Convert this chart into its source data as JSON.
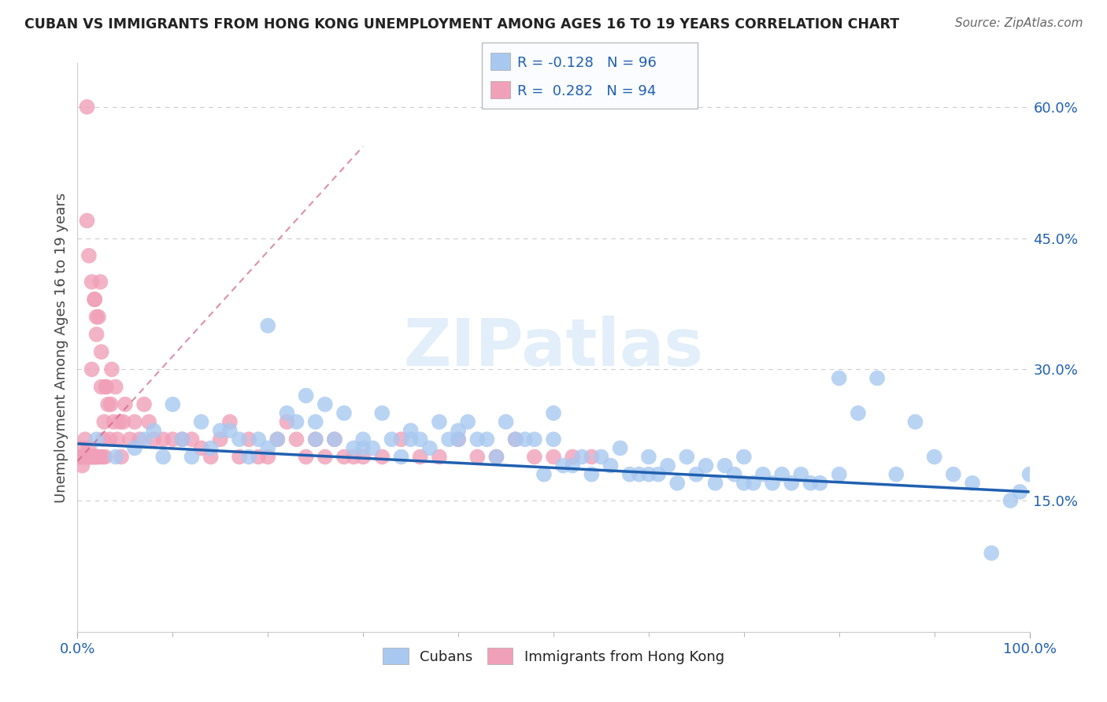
{
  "title": "CUBAN VS IMMIGRANTS FROM HONG KONG UNEMPLOYMENT AMONG AGES 16 TO 19 YEARS CORRELATION CHART",
  "source": "Source: ZipAtlas.com",
  "ylabel": "Unemployment Among Ages 16 to 19 years",
  "xlim": [
    0.0,
    1.0
  ],
  "ylim": [
    0.0,
    0.65
  ],
  "y_ticks": [
    0.15,
    0.3,
    0.45,
    0.6
  ],
  "y_tick_labels": [
    "15.0%",
    "30.0%",
    "45.0%",
    "60.0%"
  ],
  "blue_R": -0.128,
  "blue_N": 96,
  "pink_R": 0.282,
  "pink_N": 94,
  "blue_color": "#A8C8F0",
  "pink_color": "#F0A0B8",
  "blue_line_color": "#2060B0",
  "pink_line_color": "#D06080",
  "text_color": "#2060B0",
  "background_color": "#FFFFFF",
  "grid_color": "#CCCCCC",
  "watermark_color": "#D8E8F8",
  "blue_x": [
    0.02,
    0.04,
    0.06,
    0.07,
    0.08,
    0.09,
    0.1,
    0.11,
    0.12,
    0.13,
    0.14,
    0.16,
    0.17,
    0.18,
    0.19,
    0.2,
    0.21,
    0.22,
    0.23,
    0.24,
    0.25,
    0.26,
    0.27,
    0.28,
    0.29,
    0.3,
    0.31,
    0.32,
    0.33,
    0.34,
    0.35,
    0.36,
    0.37,
    0.38,
    0.39,
    0.4,
    0.41,
    0.42,
    0.43,
    0.44,
    0.45,
    0.46,
    0.47,
    0.48,
    0.49,
    0.5,
    0.51,
    0.52,
    0.53,
    0.54,
    0.55,
    0.56,
    0.57,
    0.58,
    0.59,
    0.6,
    0.61,
    0.62,
    0.63,
    0.64,
    0.65,
    0.66,
    0.67,
    0.68,
    0.69,
    0.7,
    0.71,
    0.72,
    0.73,
    0.74,
    0.75,
    0.76,
    0.77,
    0.78,
    0.8,
    0.82,
    0.84,
    0.86,
    0.88,
    0.9,
    0.92,
    0.94,
    0.96,
    0.98,
    0.99,
    1.0,
    0.15,
    0.2,
    0.25,
    0.3,
    0.35,
    0.4,
    0.5,
    0.6,
    0.7,
    0.8
  ],
  "blue_y": [
    0.22,
    0.2,
    0.21,
    0.22,
    0.23,
    0.2,
    0.26,
    0.22,
    0.2,
    0.24,
    0.21,
    0.23,
    0.22,
    0.2,
    0.22,
    0.35,
    0.22,
    0.25,
    0.24,
    0.27,
    0.24,
    0.26,
    0.22,
    0.25,
    0.21,
    0.22,
    0.21,
    0.25,
    0.22,
    0.2,
    0.22,
    0.22,
    0.21,
    0.24,
    0.22,
    0.23,
    0.24,
    0.22,
    0.22,
    0.2,
    0.24,
    0.22,
    0.22,
    0.22,
    0.18,
    0.25,
    0.19,
    0.19,
    0.2,
    0.18,
    0.2,
    0.19,
    0.21,
    0.18,
    0.18,
    0.2,
    0.18,
    0.19,
    0.17,
    0.2,
    0.18,
    0.19,
    0.17,
    0.19,
    0.18,
    0.2,
    0.17,
    0.18,
    0.17,
    0.18,
    0.17,
    0.18,
    0.17,
    0.17,
    0.18,
    0.25,
    0.29,
    0.18,
    0.24,
    0.2,
    0.18,
    0.17,
    0.09,
    0.15,
    0.16,
    0.18,
    0.23,
    0.21,
    0.22,
    0.21,
    0.23,
    0.22,
    0.22,
    0.18,
    0.17,
    0.29
  ],
  "pink_x": [
    0.002,
    0.003,
    0.004,
    0.005,
    0.005,
    0.006,
    0.007,
    0.008,
    0.008,
    0.009,
    0.01,
    0.01,
    0.011,
    0.012,
    0.012,
    0.013,
    0.014,
    0.015,
    0.015,
    0.016,
    0.017,
    0.018,
    0.018,
    0.019,
    0.02,
    0.02,
    0.021,
    0.022,
    0.023,
    0.024,
    0.025,
    0.026,
    0.027,
    0.028,
    0.029,
    0.03,
    0.032,
    0.034,
    0.036,
    0.038,
    0.04,
    0.042,
    0.044,
    0.046,
    0.048,
    0.05,
    0.055,
    0.06,
    0.065,
    0.07,
    0.075,
    0.08,
    0.09,
    0.1,
    0.11,
    0.12,
    0.13,
    0.14,
    0.15,
    0.16,
    0.17,
    0.18,
    0.19,
    0.2,
    0.21,
    0.22,
    0.23,
    0.24,
    0.25,
    0.26,
    0.27,
    0.28,
    0.29,
    0.3,
    0.32,
    0.34,
    0.36,
    0.38,
    0.4,
    0.42,
    0.44,
    0.46,
    0.48,
    0.5,
    0.52,
    0.54,
    0.01,
    0.012,
    0.015,
    0.018,
    0.02,
    0.025,
    0.03,
    0.035
  ],
  "pink_y": [
    0.2,
    0.2,
    0.2,
    0.21,
    0.19,
    0.2,
    0.2,
    0.22,
    0.2,
    0.2,
    0.6,
    0.2,
    0.2,
    0.2,
    0.21,
    0.2,
    0.2,
    0.3,
    0.2,
    0.2,
    0.2,
    0.38,
    0.2,
    0.2,
    0.34,
    0.2,
    0.2,
    0.36,
    0.2,
    0.4,
    0.28,
    0.2,
    0.22,
    0.24,
    0.2,
    0.28,
    0.26,
    0.22,
    0.3,
    0.24,
    0.28,
    0.22,
    0.24,
    0.2,
    0.24,
    0.26,
    0.22,
    0.24,
    0.22,
    0.26,
    0.24,
    0.22,
    0.22,
    0.22,
    0.22,
    0.22,
    0.21,
    0.2,
    0.22,
    0.24,
    0.2,
    0.22,
    0.2,
    0.2,
    0.22,
    0.24,
    0.22,
    0.2,
    0.22,
    0.2,
    0.22,
    0.2,
    0.2,
    0.2,
    0.2,
    0.22,
    0.2,
    0.2,
    0.22,
    0.2,
    0.2,
    0.22,
    0.2,
    0.2,
    0.2,
    0.2,
    0.47,
    0.43,
    0.4,
    0.38,
    0.36,
    0.32,
    0.28,
    0.26
  ]
}
